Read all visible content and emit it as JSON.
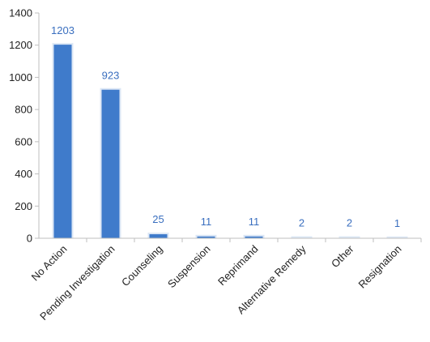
{
  "chart_data": {
    "type": "bar",
    "categories": [
      "No Action",
      "Pending Investigation",
      "Counseling",
      "Suspension",
      "Reprimand",
      "Alternative Remedy",
      "Other",
      "Resignation"
    ],
    "values": [
      1203,
      923,
      25,
      11,
      11,
      2,
      2,
      1
    ],
    "data_labels": [
      "1203",
      "923",
      "25",
      "11",
      "11",
      "2",
      "2",
      "1"
    ],
    "title": "",
    "xlabel": "",
    "ylabel": "",
    "ylim": [
      0,
      1400
    ],
    "yticks": [
      "0",
      "200",
      "400",
      "600",
      "800",
      "1000",
      "1200",
      "1400"
    ],
    "grid": false,
    "legend": "none",
    "bar_color": "#3f7bcb",
    "bar_highlight_color": "#dce7f5",
    "label_color": "#3a6fbf"
  }
}
